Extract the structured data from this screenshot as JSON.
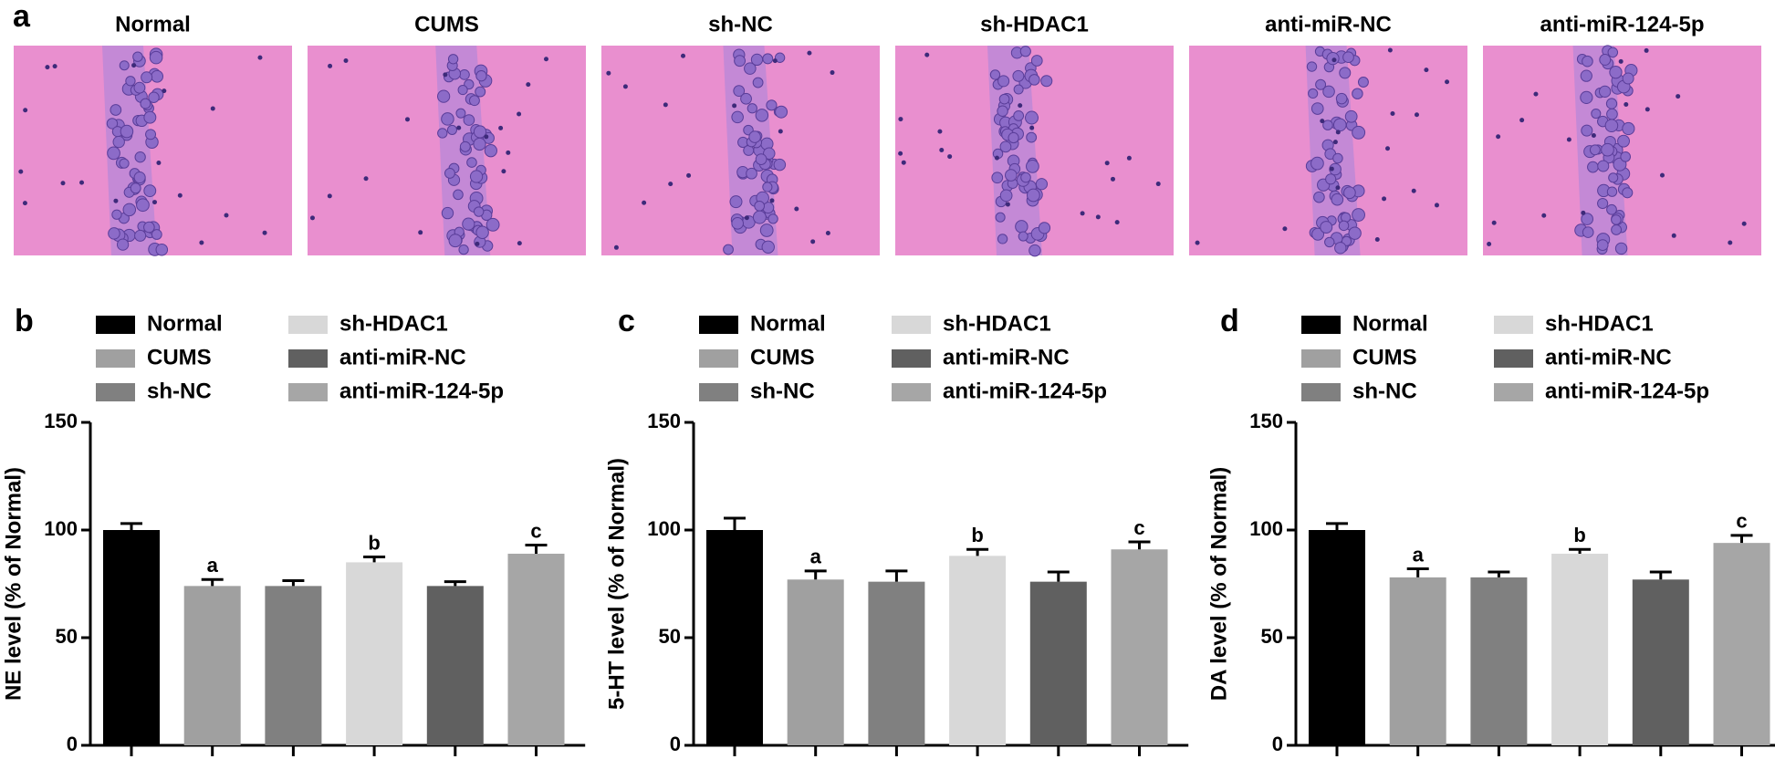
{
  "panel_a": {
    "label": "a",
    "images": [
      "Normal",
      "CUMS",
      "sh-NC",
      "sh-HDAC1",
      "anti-miR-NC",
      "anti-miR-124-5p"
    ]
  },
  "chart_data": [
    {
      "type": "bar",
      "panel": "b",
      "ylabel": "NE level (% of Normal)",
      "categories": [
        "Normal",
        "CUMS",
        "sh-NC",
        "sh-HDAC1",
        "anti-miR-NC",
        "anti-miR-124-5p"
      ],
      "colors": [
        "#000000",
        "#a0a0a0",
        "#808080",
        "#d8d8d8",
        "#606060",
        "#a6a6a6"
      ],
      "values": [
        100,
        74,
        74,
        85,
        74,
        89
      ],
      "errors": [
        3,
        3,
        2.5,
        2.5,
        2,
        4
      ],
      "annotations": [
        null,
        "a",
        null,
        "b",
        null,
        "c"
      ],
      "ylim": [
        0,
        150
      ],
      "yticks": [
        0,
        50,
        100,
        150
      ]
    },
    {
      "type": "bar",
      "panel": "c",
      "ylabel": "5-HT level (% of Normal)",
      "categories": [
        "Normal",
        "CUMS",
        "sh-NC",
        "sh-HDAC1",
        "anti-miR-NC",
        "anti-miR-124-5p"
      ],
      "colors": [
        "#000000",
        "#a0a0a0",
        "#808080",
        "#d8d8d8",
        "#606060",
        "#a6a6a6"
      ],
      "values": [
        100,
        77,
        76,
        88,
        76,
        91
      ],
      "errors": [
        5.5,
        4,
        5,
        3,
        4.5,
        3.5
      ],
      "annotations": [
        null,
        "a",
        null,
        "b",
        null,
        "c"
      ],
      "ylim": [
        0,
        150
      ],
      "yticks": [
        0,
        50,
        100,
        150
      ]
    },
    {
      "type": "bar",
      "panel": "d",
      "ylabel": "DA level (% of Normal)",
      "categories": [
        "Normal",
        "CUMS",
        "sh-NC",
        "sh-HDAC1",
        "anti-miR-NC",
        "anti-miR-124-5p"
      ],
      "colors": [
        "#000000",
        "#a0a0a0",
        "#808080",
        "#d8d8d8",
        "#606060",
        "#a6a6a6"
      ],
      "values": [
        100,
        78,
        78,
        89,
        77,
        94
      ],
      "errors": [
        3,
        4,
        2.5,
        2,
        3.5,
        3.5
      ],
      "annotations": [
        null,
        "a",
        null,
        "b",
        null,
        "c"
      ],
      "ylim": [
        0,
        150
      ],
      "yticks": [
        0,
        50,
        100,
        150
      ]
    }
  ]
}
